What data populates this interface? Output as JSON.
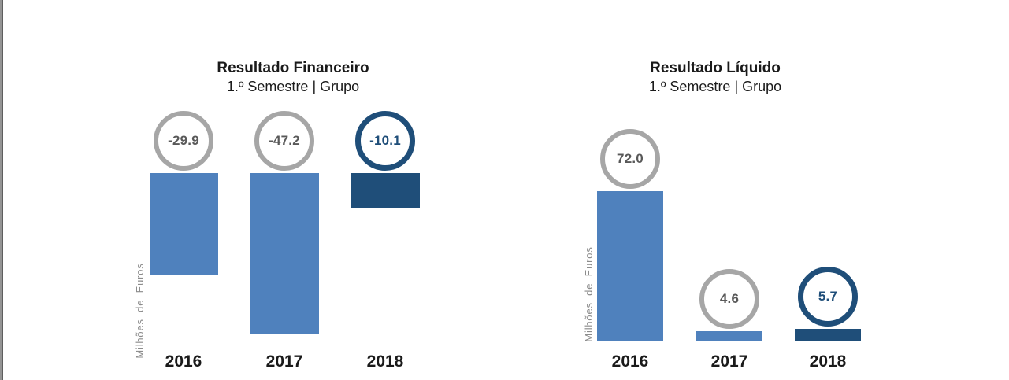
{
  "page": {
    "background": "#ffffff",
    "edge_strip_color": "#949494"
  },
  "chart_data": [
    {
      "type": "bar",
      "title": "Resultado Financeiro",
      "subtitle": "1.º Semestre | Grupo",
      "ylabel": "Milhões de Euros",
      "xlabel": "",
      "categories": [
        "2016",
        "2017",
        "2018"
      ],
      "values": [
        -29.9,
        -47.2,
        -10.1
      ],
      "value_labels": [
        "-29.9",
        "-47.2",
        "-10.1"
      ],
      "bar_colors": [
        "#4f81bd",
        "#4f81bd",
        "#1f4e79"
      ],
      "circle_colors": [
        "#a6a6a6",
        "#a6a6a6",
        "#1f4e79"
      ],
      "value_text_colors": [
        "#595959",
        "#595959",
        "#1f4e79"
      ],
      "emphasized": [
        false,
        false,
        true
      ],
      "baseline": 0,
      "ylim": [
        -50,
        0
      ],
      "grid": false,
      "legend": false
    },
    {
      "type": "bar",
      "title": "Resultado Líquido",
      "subtitle": "1.º Semestre | Grupo",
      "ylabel": "Milhões de Euros",
      "xlabel": "",
      "categories": [
        "2016",
        "2017",
        "2018"
      ],
      "values": [
        72.0,
        4.6,
        5.7
      ],
      "value_labels": [
        "72.0",
        "4.6",
        "5.7"
      ],
      "bar_colors": [
        "#4f81bd",
        "#4f81bd",
        "#1f4e79"
      ],
      "circle_colors": [
        "#a6a6a6",
        "#a6a6a6",
        "#1f4e79"
      ],
      "value_text_colors": [
        "#595959",
        "#595959",
        "#1f4e79"
      ],
      "emphasized": [
        false,
        false,
        true
      ],
      "baseline": 0,
      "ylim": [
        0,
        80
      ],
      "grid": false,
      "legend": false
    }
  ]
}
